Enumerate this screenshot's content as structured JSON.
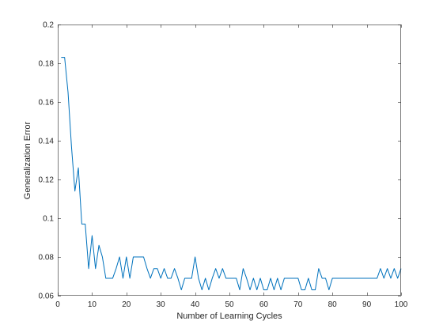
{
  "chart_data": {
    "type": "line",
    "title": "",
    "xlabel": "Number of Learning Cycles",
    "ylabel": "Generalization Error",
    "xlim": [
      0,
      100
    ],
    "ylim": [
      0.06,
      0.2
    ],
    "xticks": [
      0,
      10,
      20,
      30,
      40,
      50,
      60,
      70,
      80,
      90,
      100
    ],
    "yticks": [
      0.06,
      0.08,
      0.1,
      0.12,
      0.14,
      0.16,
      0.18,
      0.2
    ],
    "xtick_labels": [
      "0",
      "10",
      "20",
      "30",
      "40",
      "50",
      "60",
      "70",
      "80",
      "90",
      "100"
    ],
    "ytick_labels": [
      "0.06",
      "0.08",
      "0.1",
      "0.12",
      "0.14",
      "0.16",
      "0.18",
      "0.2"
    ],
    "grid": false,
    "box": true,
    "line_color": "#0072bd",
    "series": [
      {
        "x": [
          1,
          2,
          3,
          4,
          5,
          6,
          7,
          8,
          9,
          10,
          11,
          12,
          13,
          14,
          15,
          16,
          17,
          18,
          19,
          20,
          21,
          22,
          23,
          24,
          25,
          26,
          27,
          28,
          29,
          30,
          31,
          32,
          33,
          34,
          35,
          36,
          37,
          38,
          39,
          40,
          41,
          42,
          43,
          44,
          45,
          46,
          47,
          48,
          49,
          50,
          51,
          52,
          53,
          54,
          55,
          56,
          57,
          58,
          59,
          60,
          61,
          62,
          63,
          64,
          65,
          66,
          67,
          68,
          69,
          70,
          71,
          72,
          73,
          74,
          75,
          76,
          77,
          78,
          79,
          80,
          81,
          82,
          83,
          84,
          85,
          86,
          87,
          88,
          89,
          90,
          91,
          92,
          93,
          94,
          95,
          96,
          97,
          98,
          99,
          100
        ],
        "values": [
          0.183,
          0.183,
          0.165,
          0.137,
          0.114,
          0.126,
          0.097,
          0.097,
          0.074,
          0.091,
          0.074,
          0.086,
          0.08,
          0.069,
          0.069,
          0.069,
          0.074,
          0.08,
          0.069,
          0.08,
          0.069,
          0.08,
          0.08,
          0.08,
          0.08,
          0.074,
          0.069,
          0.074,
          0.074,
          0.069,
          0.074,
          0.069,
          0.069,
          0.074,
          0.069,
          0.063,
          0.069,
          0.069,
          0.069,
          0.08,
          0.069,
          0.063,
          0.069,
          0.063,
          0.069,
          0.074,
          0.069,
          0.074,
          0.069,
          0.069,
          0.069,
          0.069,
          0.063,
          0.074,
          0.069,
          0.063,
          0.069,
          0.063,
          0.069,
          0.063,
          0.063,
          0.069,
          0.063,
          0.069,
          0.063,
          0.069,
          0.069,
          0.069,
          0.069,
          0.069,
          0.063,
          0.063,
          0.069,
          0.063,
          0.063,
          0.074,
          0.069,
          0.069,
          0.063,
          0.069,
          0.069,
          0.069,
          0.069,
          0.069,
          0.069,
          0.069,
          0.069,
          0.069,
          0.069,
          0.069,
          0.069,
          0.069,
          0.069,
          0.074,
          0.069,
          0.074,
          0.069,
          0.074,
          0.069,
          0.074
        ]
      }
    ]
  }
}
